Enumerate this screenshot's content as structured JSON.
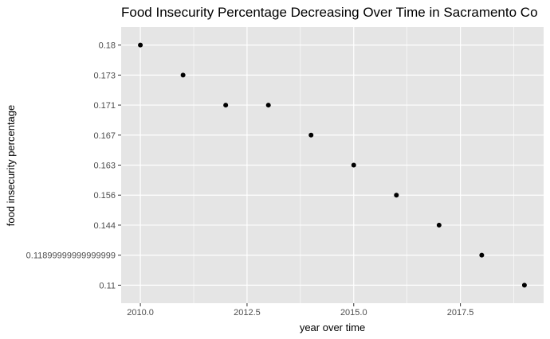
{
  "chart_data": {
    "type": "scatter",
    "title": "Food Insecurity Percentage Decreasing Over Time in Sacramento Co",
    "xlabel": "year over time",
    "ylabel": "food insecurity percentage",
    "x_ticks": [
      "2010.0",
      "2012.5",
      "2015.0",
      "2017.5"
    ],
    "y_categories": [
      "0.11",
      "0.11899999999999999",
      "0.144",
      "0.156",
      "0.163",
      "0.167",
      "0.171",
      "0.173",
      "0.18"
    ],
    "xlim": [
      2009.55,
      2019.45
    ],
    "grid": true,
    "points": [
      {
        "x": 2010,
        "y": "0.18"
      },
      {
        "x": 2011,
        "y": "0.173"
      },
      {
        "x": 2012,
        "y": "0.171"
      },
      {
        "x": 2013,
        "y": "0.171"
      },
      {
        "x": 2014,
        "y": "0.167"
      },
      {
        "x": 2015,
        "y": "0.163"
      },
      {
        "x": 2016,
        "y": "0.156"
      },
      {
        "x": 2017,
        "y": "0.144"
      },
      {
        "x": 2018,
        "y": "0.11899999999999999"
      },
      {
        "x": 2019,
        "y": "0.11"
      }
    ],
    "colors": {
      "panel_background": "#e5e5e5",
      "grid_line": "#ffffff",
      "point": "#000000",
      "tick_label": "#4d4d4d",
      "tick_mark": "#333333"
    }
  }
}
